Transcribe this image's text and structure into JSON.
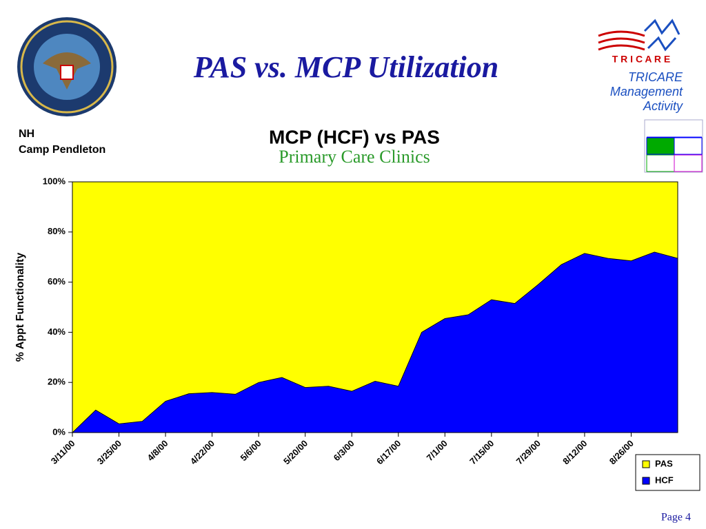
{
  "slide": {
    "title": "PAS vs. MCP Utilization",
    "location": [
      "NH",
      "Camp Pendleton"
    ],
    "logo": {
      "letters": "T R I C A R E",
      "lines": [
        "TRICARE",
        "Management",
        "Activity"
      ]
    },
    "page": "Page 4"
  },
  "chart_data": {
    "type": "area",
    "stacked": true,
    "title": "MCP (HCF) vs PAS",
    "subtitle": "Primary Care Clinics",
    "y_label": "% Appt Functionality",
    "categories": [
      "3/11/00",
      null,
      "3/25/00",
      null,
      "4/8/00",
      null,
      "4/22/00",
      null,
      "5/6/00",
      null,
      "5/20/00",
      null,
      "6/3/00",
      null,
      "6/17/00",
      null,
      "7/1/00",
      null,
      "7/15/00",
      null,
      "7/29/00",
      null,
      "8/12/00",
      null,
      "8/26/00",
      null,
      null
    ],
    "series": [
      {
        "name": "HCF",
        "color": "#0000ff",
        "values": [
          0,
          9,
          3.5,
          4.5,
          12.5,
          15.5,
          16,
          15.3,
          20,
          22,
          18,
          18.5,
          16.5,
          20.5,
          18.5,
          40,
          45.5,
          47,
          53,
          51.5,
          59,
          67,
          71.5,
          69.5,
          68.5,
          72,
          69.5
        ]
      },
      {
        "name": "PAS",
        "color": "#ffff00",
        "values": [
          100,
          91,
          96.5,
          95.5,
          87.5,
          84.5,
          84,
          84.7,
          80,
          78,
          82,
          81.5,
          83.5,
          79.5,
          81.5,
          60,
          54.5,
          53,
          47,
          48.5,
          41,
          33,
          28.5,
          30.5,
          31.5,
          28,
          30.5
        ]
      }
    ],
    "ylim": [
      0,
      100
    ],
    "yticks": [
      {
        "value": 0,
        "label": "0%"
      },
      {
        "value": 20,
        "label": "20%"
      },
      {
        "value": 40,
        "label": "40%"
      },
      {
        "value": 60,
        "label": "60%"
      },
      {
        "value": 80,
        "label": "80%"
      },
      {
        "value": 100,
        "label": "100%"
      }
    ],
    "legend": "bottom-right"
  }
}
